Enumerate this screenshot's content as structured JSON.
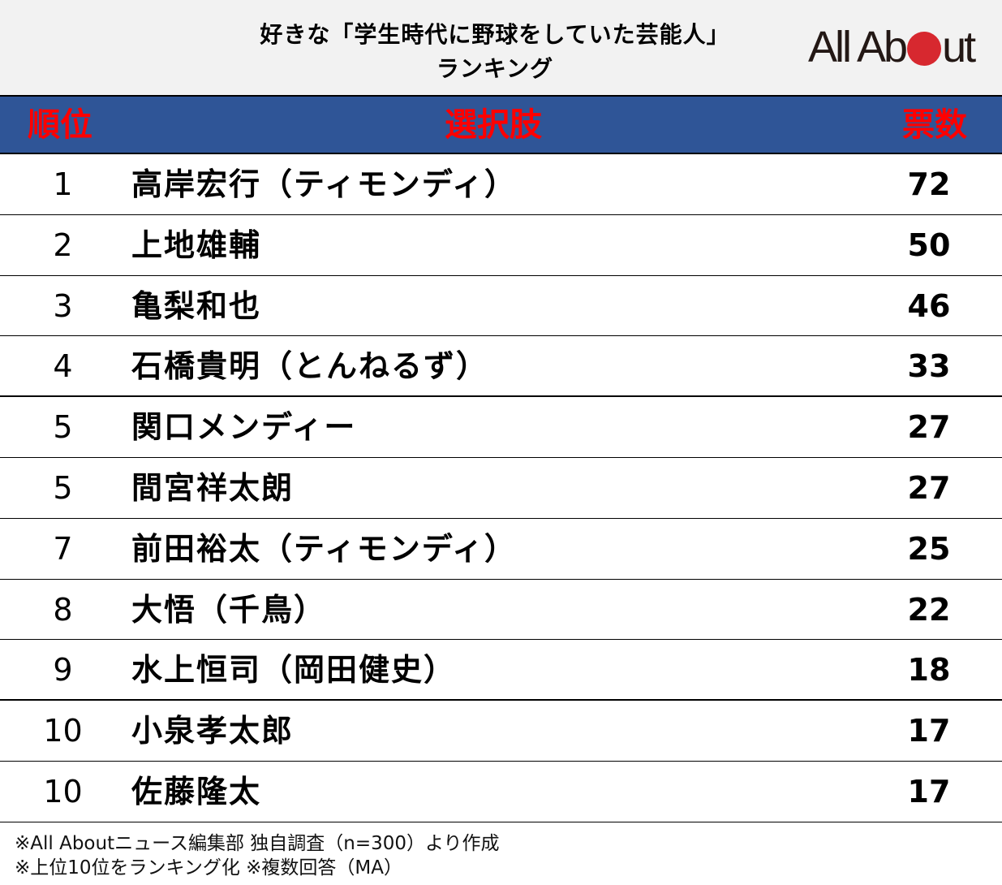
{
  "title": {
    "line1": "好きな「学生時代に野球をしていた芸能人」",
    "line2": "ランキング"
  },
  "logo": {
    "left": "All Ab",
    "right": "ut",
    "dot_color": "#d7282f"
  },
  "header": {
    "rank": "順位",
    "choice": "選択肢",
    "votes": "票数",
    "bg_color": "#2f5597",
    "text_color": "#ff0000"
  },
  "rows": [
    {
      "rank": "1",
      "name": "高岸宏行（ティモンディ）",
      "votes": "72"
    },
    {
      "rank": "2",
      "name": "上地雄輔",
      "votes": "50"
    },
    {
      "rank": "3",
      "name": "亀梨和也",
      "votes": "46"
    },
    {
      "rank": "4",
      "name": "石橋貴明（とんねるず）",
      "votes": "33"
    },
    {
      "rank": "5",
      "name": "関口メンディー",
      "votes": "27"
    },
    {
      "rank": "5",
      "name": "間宮祥太朗",
      "votes": "27"
    },
    {
      "rank": "7",
      "name": "前田裕太（ティモンディ）",
      "votes": "25"
    },
    {
      "rank": "8",
      "name": "大悟（千鳥）",
      "votes": "22"
    },
    {
      "rank": "9",
      "name": "水上恒司（岡田健史）",
      "votes": "18"
    },
    {
      "rank": "10",
      "name": "小泉孝太郎",
      "votes": "17"
    },
    {
      "rank": "10",
      "name": "佐藤隆太",
      "votes": "17"
    }
  ],
  "notes": {
    "line1": "※All Aboutニュース編集部 独自調査（n=300）より作成",
    "line2": "※上位10位をランキング化  ※複数回答（MA）"
  }
}
